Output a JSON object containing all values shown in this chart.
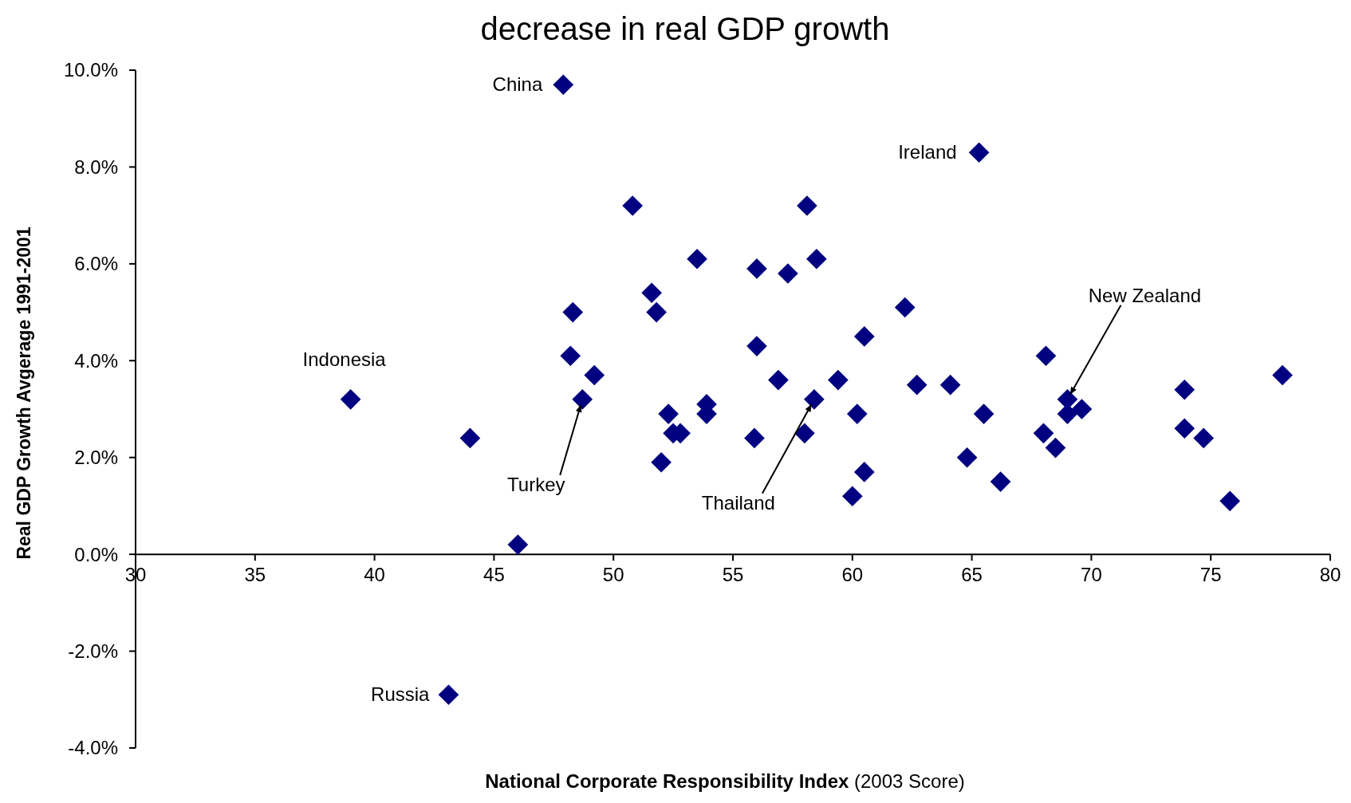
{
  "chart_data": {
    "type": "scatter",
    "title": "decrease in real GDP growth",
    "xlabel": "National Corporate Responsibility Index (2003 Score)",
    "ylabel": "Real GDP Growth Avgerage 1991-2001",
    "xlim": [
      30,
      80
    ],
    "xticks": [
      30,
      35,
      40,
      45,
      50,
      55,
      60,
      65,
      70,
      75,
      80
    ],
    "ylim": [
      -4,
      10
    ],
    "yticks": [
      {
        "value": -4,
        "label": "-4.0%"
      },
      {
        "value": -2,
        "label": "-2.0%"
      },
      {
        "value": 0,
        "label": "0.0%"
      },
      {
        "value": 2,
        "label": "2.0%"
      },
      {
        "value": 4,
        "label": "4.0%"
      },
      {
        "value": 6,
        "label": "6.0%"
      },
      {
        "value": 8,
        "label": "8.0%"
      },
      {
        "value": 10,
        "label": "10.0%"
      }
    ],
    "marker": "diamond",
    "grid": false,
    "series": [
      {
        "color": "#000080",
        "x": [
          47.9,
          65.3,
          50.8,
          58.1,
          53.5,
          56.0,
          57.3,
          58.5,
          51.6,
          51.8,
          48.3,
          62.2,
          60.5,
          56.0,
          48.2,
          68.1,
          49.2,
          78.0,
          56.9,
          59.4,
          62.7,
          64.1,
          73.9,
          39.0,
          48.7,
          58.4,
          69.0,
          69.6,
          53.9,
          52.3,
          53.9,
          60.2,
          65.5,
          69.0,
          73.9,
          52.5,
          52.8,
          58.0,
          68.0,
          44.0,
          55.9,
          74.7,
          68.5,
          64.8,
          52.0,
          60.5,
          66.2,
          60.0,
          75.8,
          46.0,
          43.1
        ],
        "values": [
          9.7,
          8.3,
          7.2,
          7.2,
          6.1,
          5.9,
          5.8,
          6.1,
          5.4,
          5.0,
          5.0,
          5.1,
          4.5,
          4.3,
          4.1,
          4.1,
          3.7,
          3.7,
          3.6,
          3.6,
          3.5,
          3.5,
          3.4,
          3.2,
          3.2,
          3.2,
          3.2,
          3.0,
          3.1,
          2.9,
          2.9,
          2.9,
          2.9,
          2.9,
          2.6,
          2.5,
          2.5,
          2.5,
          2.5,
          2.4,
          2.4,
          2.4,
          2.2,
          2.0,
          1.9,
          1.7,
          1.5,
          1.2,
          1.1,
          0.2,
          -2.9
        ]
      }
    ],
    "annotations": [
      {
        "text": "China",
        "x": 47.9,
        "y": 9.7
      },
      {
        "text": "Ireland",
        "x": 65.3,
        "y": 8.3
      },
      {
        "text": "Indonesia",
        "x": 39.0,
        "y": 3.2
      },
      {
        "text": "Turkey",
        "x": 48.7,
        "y": 3.2
      },
      {
        "text": "Thailand",
        "x": 58.4,
        "y": 3.2
      },
      {
        "text": "New  Zealand",
        "x": 69.0,
        "y": 3.2
      },
      {
        "text": "Russia",
        "x": 43.1,
        "y": -2.9
      }
    ]
  }
}
